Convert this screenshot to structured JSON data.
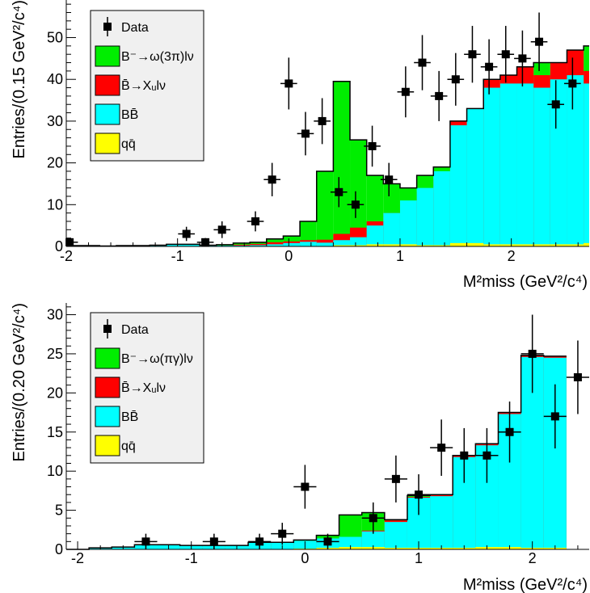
{
  "chart_data": [
    {
      "type": "histogram",
      "ylabel": "Entries/(0.15 GeV²/c⁴)",
      "xlabel": "M²miss (GeV²/c⁴)",
      "xlim": [
        -2,
        2.7
      ],
      "ylim": [
        0,
        59
      ],
      "x_ticks": [
        {
          "value": -2,
          "label": "-2"
        },
        {
          "value": -1,
          "label": "-1"
        },
        {
          "value": 0,
          "label": "0"
        },
        {
          "value": 1,
          "label": "1"
        },
        {
          "value": 2,
          "label": "2"
        }
      ],
      "y_ticks": [
        {
          "value": 0,
          "label": "0"
        },
        {
          "value": 10,
          "label": "10"
        },
        {
          "value": 20,
          "label": "20"
        },
        {
          "value": 30,
          "label": "30"
        },
        {
          "value": 40,
          "label": "40"
        },
        {
          "value": 50,
          "label": "50"
        }
      ],
      "legend": {
        "placement": "top-left",
        "entries": [
          {
            "label": "Data",
            "kind": "marker"
          },
          {
            "label": "B⁻→ω(3π)lν",
            "color": "#00ee00"
          },
          {
            "label": "B̄→Xᵤlν",
            "color": "#ff0000"
          },
          {
            "label": "BB̄",
            "color": "#00ffff"
          },
          {
            "label": "qq̄",
            "color": "#ffff00"
          }
        ]
      },
      "bins": {
        "start": -2.0,
        "width": 0.15,
        "stack_totals": {
          "bb": [
            0.2,
            0.2,
            0.1,
            0.2,
            0.2,
            0.3,
            0.5,
            0.5,
            0.3,
            0.2,
            0.2,
            0.3,
            0.5,
            0.8,
            1.1,
            0.9,
            1.5,
            2.2,
            5,
            8,
            11,
            14,
            18,
            29,
            33,
            38,
            39,
            39,
            38,
            40,
            41,
            39,
            39,
            37,
            37
          ],
          "xu": [
            0.2,
            0.2,
            0.1,
            0.2,
            0.2,
            0.3,
            0.5,
            0.5,
            0.3,
            0.2,
            0.4,
            0.6,
            1,
            1.2,
            1.5,
            1.6,
            3,
            4.5,
            6,
            8,
            10,
            13,
            16,
            30,
            32,
            40,
            41,
            43,
            41,
            44,
            47,
            42,
            41,
            40,
            40
          ],
          "sig": [
            0.2,
            0.2,
            0.1,
            0.2,
            0.2,
            0.3,
            0.5,
            0.5,
            0.3,
            0.4,
            0.8,
            1,
            1.8,
            2.5,
            6,
            18,
            39.5,
            25.5,
            17,
            15,
            14,
            17,
            19,
            24.5,
            33,
            34,
            40.5,
            42,
            44,
            41.5,
            45.5,
            48,
            42,
            40.5,
            41
          ],
          "qq": [
            0,
            0,
            0,
            0,
            0,
            0,
            0,
            0,
            0,
            0,
            0,
            0,
            0.1,
            0.1,
            0.1,
            0.1,
            0.3,
            0.3,
            0.5,
            0.5,
            0.5,
            0.3,
            0.3,
            0.8,
            0.8,
            0.5,
            0.5,
            0.5,
            0.5,
            0.5,
            0.5,
            0.8,
            0.8,
            0.5,
            0.3
          ]
        }
      },
      "data_points": [
        {
          "x": -1.97,
          "y": 1,
          "err": 1
        },
        {
          "x": -0.92,
          "y": 3,
          "err": 1.7
        },
        {
          "x": -0.75,
          "y": 1,
          "err": 1
        },
        {
          "x": -0.6,
          "y": 4,
          "err": 2
        },
        {
          "x": -0.3,
          "y": 6,
          "err": 2.4
        },
        {
          "x": -0.15,
          "y": 16,
          "err": 4
        },
        {
          "x": 0.0,
          "y": 39,
          "err": 6.2
        },
        {
          "x": 0.15,
          "y": 27,
          "err": 5.2
        },
        {
          "x": 0.3,
          "y": 30,
          "err": 5.5
        },
        {
          "x": 0.45,
          "y": 13,
          "err": 3.6
        },
        {
          "x": 0.6,
          "y": 10,
          "err": 3.2
        },
        {
          "x": 0.75,
          "y": 24,
          "err": 4.9
        },
        {
          "x": 0.9,
          "y": 16,
          "err": 4
        },
        {
          "x": 1.05,
          "y": 37,
          "err": 6.1
        },
        {
          "x": 1.2,
          "y": 44,
          "err": 6.6
        },
        {
          "x": 1.35,
          "y": 36,
          "err": 6
        },
        {
          "x": 1.5,
          "y": 40,
          "err": 6.3
        },
        {
          "x": 1.65,
          "y": 46,
          "err": 6.8
        },
        {
          "x": 1.8,
          "y": 43,
          "err": 6.6
        },
        {
          "x": 1.95,
          "y": 46,
          "err": 6.8
        },
        {
          "x": 2.1,
          "y": 45,
          "err": 6.7
        },
        {
          "x": 2.25,
          "y": 49,
          "err": 7
        },
        {
          "x": 2.4,
          "y": 34,
          "err": 5.8
        },
        {
          "x": 2.55,
          "y": 39,
          "err": 6.2
        }
      ]
    },
    {
      "type": "histogram",
      "ylabel": "Entries/(0.20 GeV²/c⁴)",
      "xlabel": "M²miss (GeV²/c⁴)",
      "xlim": [
        -2.1,
        2.5
      ],
      "ylim": [
        0,
        31.5
      ],
      "x_ticks": [
        {
          "value": -2,
          "label": "-2"
        },
        {
          "value": -1,
          "label": "-1"
        },
        {
          "value": 0,
          "label": "0"
        },
        {
          "value": 1,
          "label": "1"
        },
        {
          "value": 2,
          "label": "2"
        }
      ],
      "y_ticks": [
        {
          "value": 0,
          "label": "0"
        },
        {
          "value": 5,
          "label": "5"
        },
        {
          "value": 10,
          "label": "10"
        },
        {
          "value": 15,
          "label": "15"
        },
        {
          "value": 20,
          "label": "20"
        },
        {
          "value": 25,
          "label": "25"
        },
        {
          "value": 30,
          "label": "30"
        }
      ],
      "legend": {
        "placement": "top-left",
        "entries": [
          {
            "label": "Data",
            "kind": "marker"
          },
          {
            "label": "B⁻→ω(πγ)lν",
            "color": "#00ee00"
          },
          {
            "label": "B̄→Xᵤlν",
            "color": "#ff0000"
          },
          {
            "label": "BB̄",
            "color": "#00ffff"
          },
          {
            "label": "qq̄",
            "color": "#ffff00"
          }
        ]
      },
      "bins": {
        "start": -2.1,
        "width": 0.2,
        "stack_totals": {
          "bb": [
            0,
            0.2,
            0.3,
            0.6,
            0.6,
            0.5,
            0.5,
            0.5,
            0.9,
            0.9,
            1.1,
            1.4,
            1.6,
            2.3,
            3.5,
            6.6,
            6.8,
            11.8,
            13.3,
            17.3,
            24.6,
            24.5
          ],
          "xu": [
            0,
            0.2,
            0.3,
            0.6,
            0.6,
            0.5,
            0.5,
            0.5,
            0.9,
            0.9,
            1.1,
            1.4,
            1.6,
            2.4,
            3.7,
            6.7,
            7,
            12,
            13.5,
            17.5,
            24.8,
            24.7
          ],
          "sig": [
            0,
            0.2,
            0.3,
            0.6,
            0.6,
            0.5,
            0.5,
            0.5,
            0.9,
            0.9,
            1.2,
            1.8,
            4.4,
            4.7,
            3.8,
            6.9,
            7,
            12,
            13.5,
            17.5,
            24.8,
            24.7
          ],
          "qq": [
            0,
            0,
            0,
            0,
            0,
            0,
            0,
            0,
            0,
            0,
            0.1,
            0.2,
            0.3,
            0.3,
            0.2,
            0.2,
            0.2,
            0.2,
            0.3,
            0.3,
            0.2,
            0.2
          ]
        }
      },
      "data_points": [
        {
          "x": -1.4,
          "y": 1,
          "err": 1
        },
        {
          "x": -0.8,
          "y": 1,
          "err": 1
        },
        {
          "x": -0.4,
          "y": 1,
          "err": 1
        },
        {
          "x": -0.2,
          "y": 2,
          "err": 1.4
        },
        {
          "x": 0.0,
          "y": 8,
          "err": 2.8
        },
        {
          "x": 0.2,
          "y": 1,
          "err": 1
        },
        {
          "x": 0.6,
          "y": 4,
          "err": 2
        },
        {
          "x": 0.8,
          "y": 9,
          "err": 3
        },
        {
          "x": 1.0,
          "y": 7,
          "err": 2.6
        },
        {
          "x": 1.2,
          "y": 13,
          "err": 3.6
        },
        {
          "x": 1.4,
          "y": 12,
          "err": 3.5
        },
        {
          "x": 1.6,
          "y": 12,
          "err": 3.5
        },
        {
          "x": 1.8,
          "y": 15,
          "err": 3.9
        },
        {
          "x": 2.0,
          "y": 25,
          "err": 5
        },
        {
          "x": 2.2,
          "y": 17,
          "err": 4.1
        },
        {
          "x": 2.4,
          "y": 22,
          "err": 4.7
        }
      ]
    }
  ]
}
